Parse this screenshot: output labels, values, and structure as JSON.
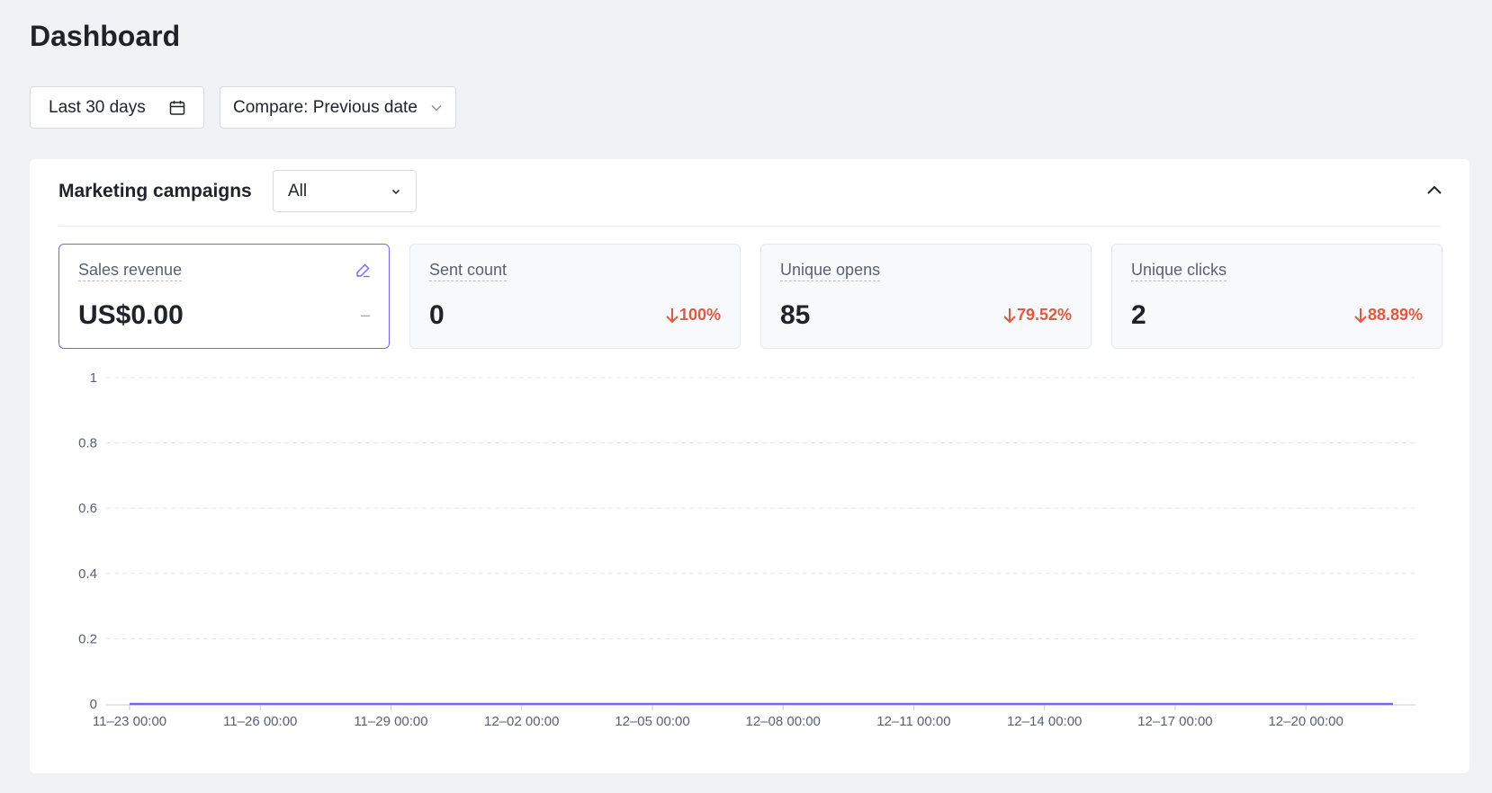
{
  "page": {
    "title": "Dashboard"
  },
  "toolbar": {
    "date_range_label": "Last 30 days",
    "compare_label": "Compare: Previous date"
  },
  "campaigns": {
    "title": "Marketing campaigns",
    "filter_value": "All",
    "metrics": [
      {
        "label": "Sales revenue",
        "value": "US$0.00",
        "change": "–",
        "trend": "none",
        "active": true
      },
      {
        "label": "Sent count",
        "value": "0",
        "change": "100%",
        "trend": "down"
      },
      {
        "label": "Unique opens",
        "value": "85",
        "change": "79.52%",
        "trend": "down"
      },
      {
        "label": "Unique clicks",
        "value": "2",
        "change": "88.89%",
        "trend": "down"
      }
    ]
  },
  "colors": {
    "accent": "#7b61ff",
    "negative": "#e5573f"
  },
  "chart_data": {
    "type": "line",
    "y_ticks": [
      "0",
      "0.2",
      "0.4",
      "0.6",
      "0.8",
      "1"
    ],
    "ylim": [
      0,
      1
    ],
    "x_tick_labels": [
      "11–23 00:00",
      "11–26 00:00",
      "11–29 00:00",
      "12–02 00:00",
      "12–05 00:00",
      "12–08 00:00",
      "12–11 00:00",
      "12–14 00:00",
      "12–17 00:00",
      "12–20 00:00"
    ],
    "x_range_days": [
      0,
      29
    ],
    "series": [
      {
        "values": [
          0,
          0
        ],
        "x_days": [
          0,
          29
        ]
      }
    ],
    "grid": true
  }
}
